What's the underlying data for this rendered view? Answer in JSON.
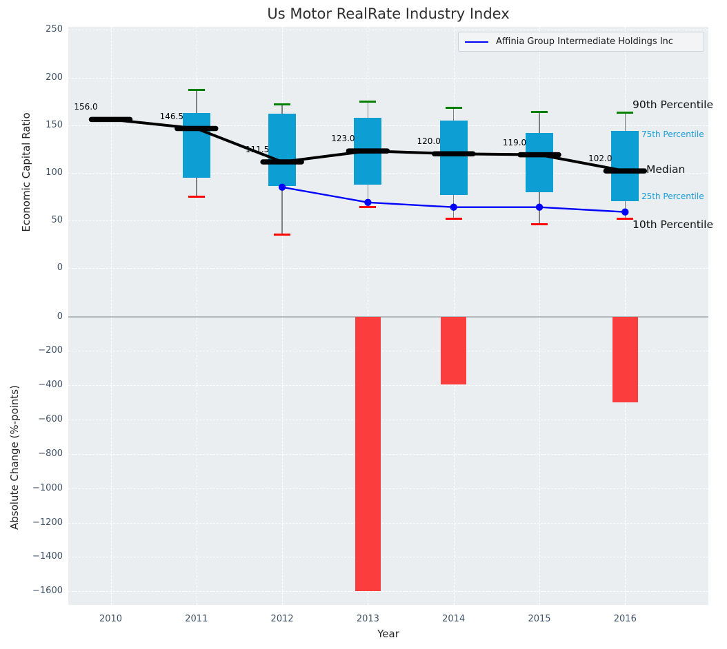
{
  "title": "Us Motor RealRate Industry Index",
  "legend": {
    "label": "Affinia Group Intermediate Holdings Inc"
  },
  "colors": {
    "box_fill": "#0d9ed3",
    "bar_fill": "#fb3d3d",
    "company_line": "#0000ff",
    "median_line": "#000000",
    "p90_cap": "#008000",
    "p10_cap": "#ff0000",
    "whisker": "#7f7f7f",
    "plot_bg": "#eaeef0",
    "grid": "#ffffff",
    "tick_text": "#3f5266",
    "percentile_minor_text": "#159dd9"
  },
  "chart_data": [
    {
      "type": "boxplot+line",
      "title": "Us Motor RealRate Industry Index",
      "ylabel": "Economic Capital Ratio",
      "ylim": [
        0,
        250
      ],
      "grid": true,
      "legend_position": "upper right",
      "yticks": {
        "values": [
          0,
          50,
          100,
          150,
          200,
          250
        ],
        "labels": [
          "0",
          "50",
          "100",
          "150",
          "200",
          "250"
        ]
      },
      "years": [
        2010,
        2011,
        2012,
        2013,
        2014,
        2015,
        2016
      ],
      "boxes": [
        {
          "year": 2010,
          "median": 156.0,
          "median_label": "156.0",
          "p10": null,
          "p25": null,
          "p75": null,
          "p90": null
        },
        {
          "year": 2011,
          "median": 146.5,
          "median_label": "146.5",
          "p10": 75,
          "p25": 95,
          "p75": 163,
          "p90": 187
        },
        {
          "year": 2012,
          "median": 111.5,
          "median_label": "111.5",
          "p10": 35,
          "p25": 86,
          "p75": 162,
          "p90": 172
        },
        {
          "year": 2013,
          "median": 123.0,
          "median_label": "123.0",
          "p10": 64,
          "p25": 88,
          "p75": 158,
          "p90": 175
        },
        {
          "year": 2014,
          "median": 120.0,
          "median_label": "120.0",
          "p10": 52,
          "p25": 77,
          "p75": 155,
          "p90": 168
        },
        {
          "year": 2015,
          "median": 119.0,
          "median_label": "119.0",
          "p10": 46,
          "p25": 80,
          "p75": 142,
          "p90": 164
        },
        {
          "year": 2016,
          "median": 102.0,
          "median_label": "102.0",
          "p10": 52,
          "p25": 70,
          "p75": 144,
          "p90": 163
        }
      ],
      "series": [
        {
          "name": "Affinia Group Intermediate Holdings Inc",
          "x": [
            2012,
            2013,
            2014,
            2015,
            2016
          ],
          "values": [
            85,
            69,
            64,
            64,
            59
          ]
        }
      ],
      "percentile_labels": [
        {
          "text": "90th Percentile",
          "style": "major"
        },
        {
          "text": "75th Percentile",
          "style": "minor"
        },
        {
          "text": "Median",
          "style": "major"
        },
        {
          "text": "25th Percentile",
          "style": "minor"
        },
        {
          "text": "10th Percentile",
          "style": "major"
        }
      ]
    },
    {
      "type": "bar",
      "ylabel": "Absolute Change (%-points)",
      "xlabel": "Year",
      "ylim": [
        -1690,
        160
      ],
      "grid": true,
      "yticks": {
        "values": [
          0,
          -200,
          -400,
          -600,
          -800,
          -1000,
          -1200,
          -1400,
          -1600
        ],
        "labels": [
          "0",
          "−200",
          "−400",
          "−600",
          "−800",
          "−1000",
          "−1200",
          "−1400",
          "−1600"
        ]
      },
      "categories": [
        2010,
        2011,
        2012,
        2013,
        2014,
        2015,
        2016
      ],
      "xtick_labels": [
        "2010",
        "2011",
        "2012",
        "2013",
        "2014",
        "2015",
        "2016"
      ],
      "values": [
        0,
        0,
        0,
        -1600,
        -395,
        0,
        -500
      ]
    }
  ]
}
